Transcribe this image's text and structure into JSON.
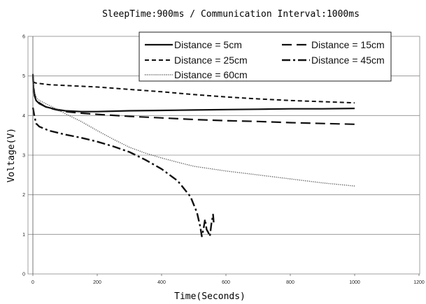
{
  "chart_data": {
    "type": "line",
    "title": "SleepTime:900ms / Communication Interval:1000ms",
    "xlabel": "Time(Seconds)",
    "ylabel": "Voltage(V)",
    "xlim": [
      0,
      1200
    ],
    "ylim": [
      0,
      6
    ],
    "xticks": [
      "0",
      "200",
      "400",
      "600",
      "800",
      "1000",
      "1200"
    ],
    "yticks": [
      "0",
      "1",
      "2",
      "3",
      "4",
      "5",
      "6"
    ],
    "grid": "horizontal",
    "legend_position": "top-right",
    "series": [
      {
        "name": "Distance = 5cm",
        "style": "solid",
        "color": "#111111",
        "points": [
          [
            0,
            5.0
          ],
          [
            2,
            4.7
          ],
          [
            5,
            4.5
          ],
          [
            10,
            4.38
          ],
          [
            20,
            4.3
          ],
          [
            40,
            4.22
          ],
          [
            70,
            4.16
          ],
          [
            100,
            4.12
          ],
          [
            150,
            4.1
          ],
          [
            200,
            4.1
          ],
          [
            300,
            4.12
          ],
          [
            400,
            4.13
          ],
          [
            500,
            4.14
          ],
          [
            600,
            4.15
          ],
          [
            700,
            4.16
          ],
          [
            800,
            4.17
          ],
          [
            900,
            4.17
          ],
          [
            1000,
            4.18
          ]
        ]
      },
      {
        "name": "Distance = 15cm",
        "style": "longdash",
        "color": "#111111",
        "points": [
          [
            0,
            5.05
          ],
          [
            2,
            4.75
          ],
          [
            5,
            4.55
          ],
          [
            10,
            4.42
          ],
          [
            20,
            4.32
          ],
          [
            40,
            4.22
          ],
          [
            70,
            4.15
          ],
          [
            100,
            4.1
          ],
          [
            150,
            4.06
          ],
          [
            200,
            4.03
          ],
          [
            300,
            3.98
          ],
          [
            400,
            3.94
          ],
          [
            500,
            3.9
          ],
          [
            600,
            3.87
          ],
          [
            700,
            3.85
          ],
          [
            800,
            3.82
          ],
          [
            900,
            3.8
          ],
          [
            1000,
            3.78
          ]
        ]
      },
      {
        "name": "Distance = 25cm",
        "style": "shortdash",
        "color": "#111111",
        "points": [
          [
            0,
            4.85
          ],
          [
            10,
            4.82
          ],
          [
            50,
            4.78
          ],
          [
            100,
            4.76
          ],
          [
            200,
            4.72
          ],
          [
            300,
            4.66
          ],
          [
            400,
            4.6
          ],
          [
            500,
            4.53
          ],
          [
            600,
            4.47
          ],
          [
            700,
            4.42
          ],
          [
            800,
            4.38
          ],
          [
            900,
            4.35
          ],
          [
            1000,
            4.32
          ]
        ]
      },
      {
        "name": "Distance = 45cm",
        "style": "dashdot",
        "color": "#111111",
        "points": [
          [
            0,
            4.2
          ],
          [
            5,
            3.98
          ],
          [
            10,
            3.8
          ],
          [
            20,
            3.72
          ],
          [
            50,
            3.62
          ],
          [
            100,
            3.52
          ],
          [
            150,
            3.44
          ],
          [
            200,
            3.34
          ],
          [
            250,
            3.22
          ],
          [
            300,
            3.08
          ],
          [
            350,
            2.88
          ],
          [
            400,
            2.65
          ],
          [
            450,
            2.35
          ],
          [
            490,
            1.95
          ],
          [
            510,
            1.55
          ],
          [
            520,
            1.2
          ],
          [
            525,
            0.95
          ],
          [
            530,
            1.12
          ],
          [
            535,
            1.38
          ],
          [
            540,
            1.12
          ],
          [
            545,
            1.05
          ],
          [
            550,
            0.95
          ],
          [
            555,
            1.28
          ],
          [
            560,
            1.5
          ],
          [
            562,
            1.3
          ]
        ]
      },
      {
        "name": "Distance = 60cm",
        "style": "dotted",
        "color": "#555555",
        "points": [
          [
            0,
            5.05
          ],
          [
            2,
            4.75
          ],
          [
            5,
            4.55
          ],
          [
            10,
            4.45
          ],
          [
            20,
            4.38
          ],
          [
            40,
            4.3
          ],
          [
            60,
            4.22
          ],
          [
            80,
            4.14
          ],
          [
            100,
            4.05
          ],
          [
            150,
            3.85
          ],
          [
            200,
            3.62
          ],
          [
            250,
            3.4
          ],
          [
            300,
            3.2
          ],
          [
            350,
            3.05
          ],
          [
            400,
            2.93
          ],
          [
            450,
            2.82
          ],
          [
            500,
            2.72
          ],
          [
            600,
            2.6
          ],
          [
            700,
            2.5
          ],
          [
            800,
            2.4
          ],
          [
            900,
            2.3
          ],
          [
            1000,
            2.22
          ]
        ]
      }
    ]
  }
}
